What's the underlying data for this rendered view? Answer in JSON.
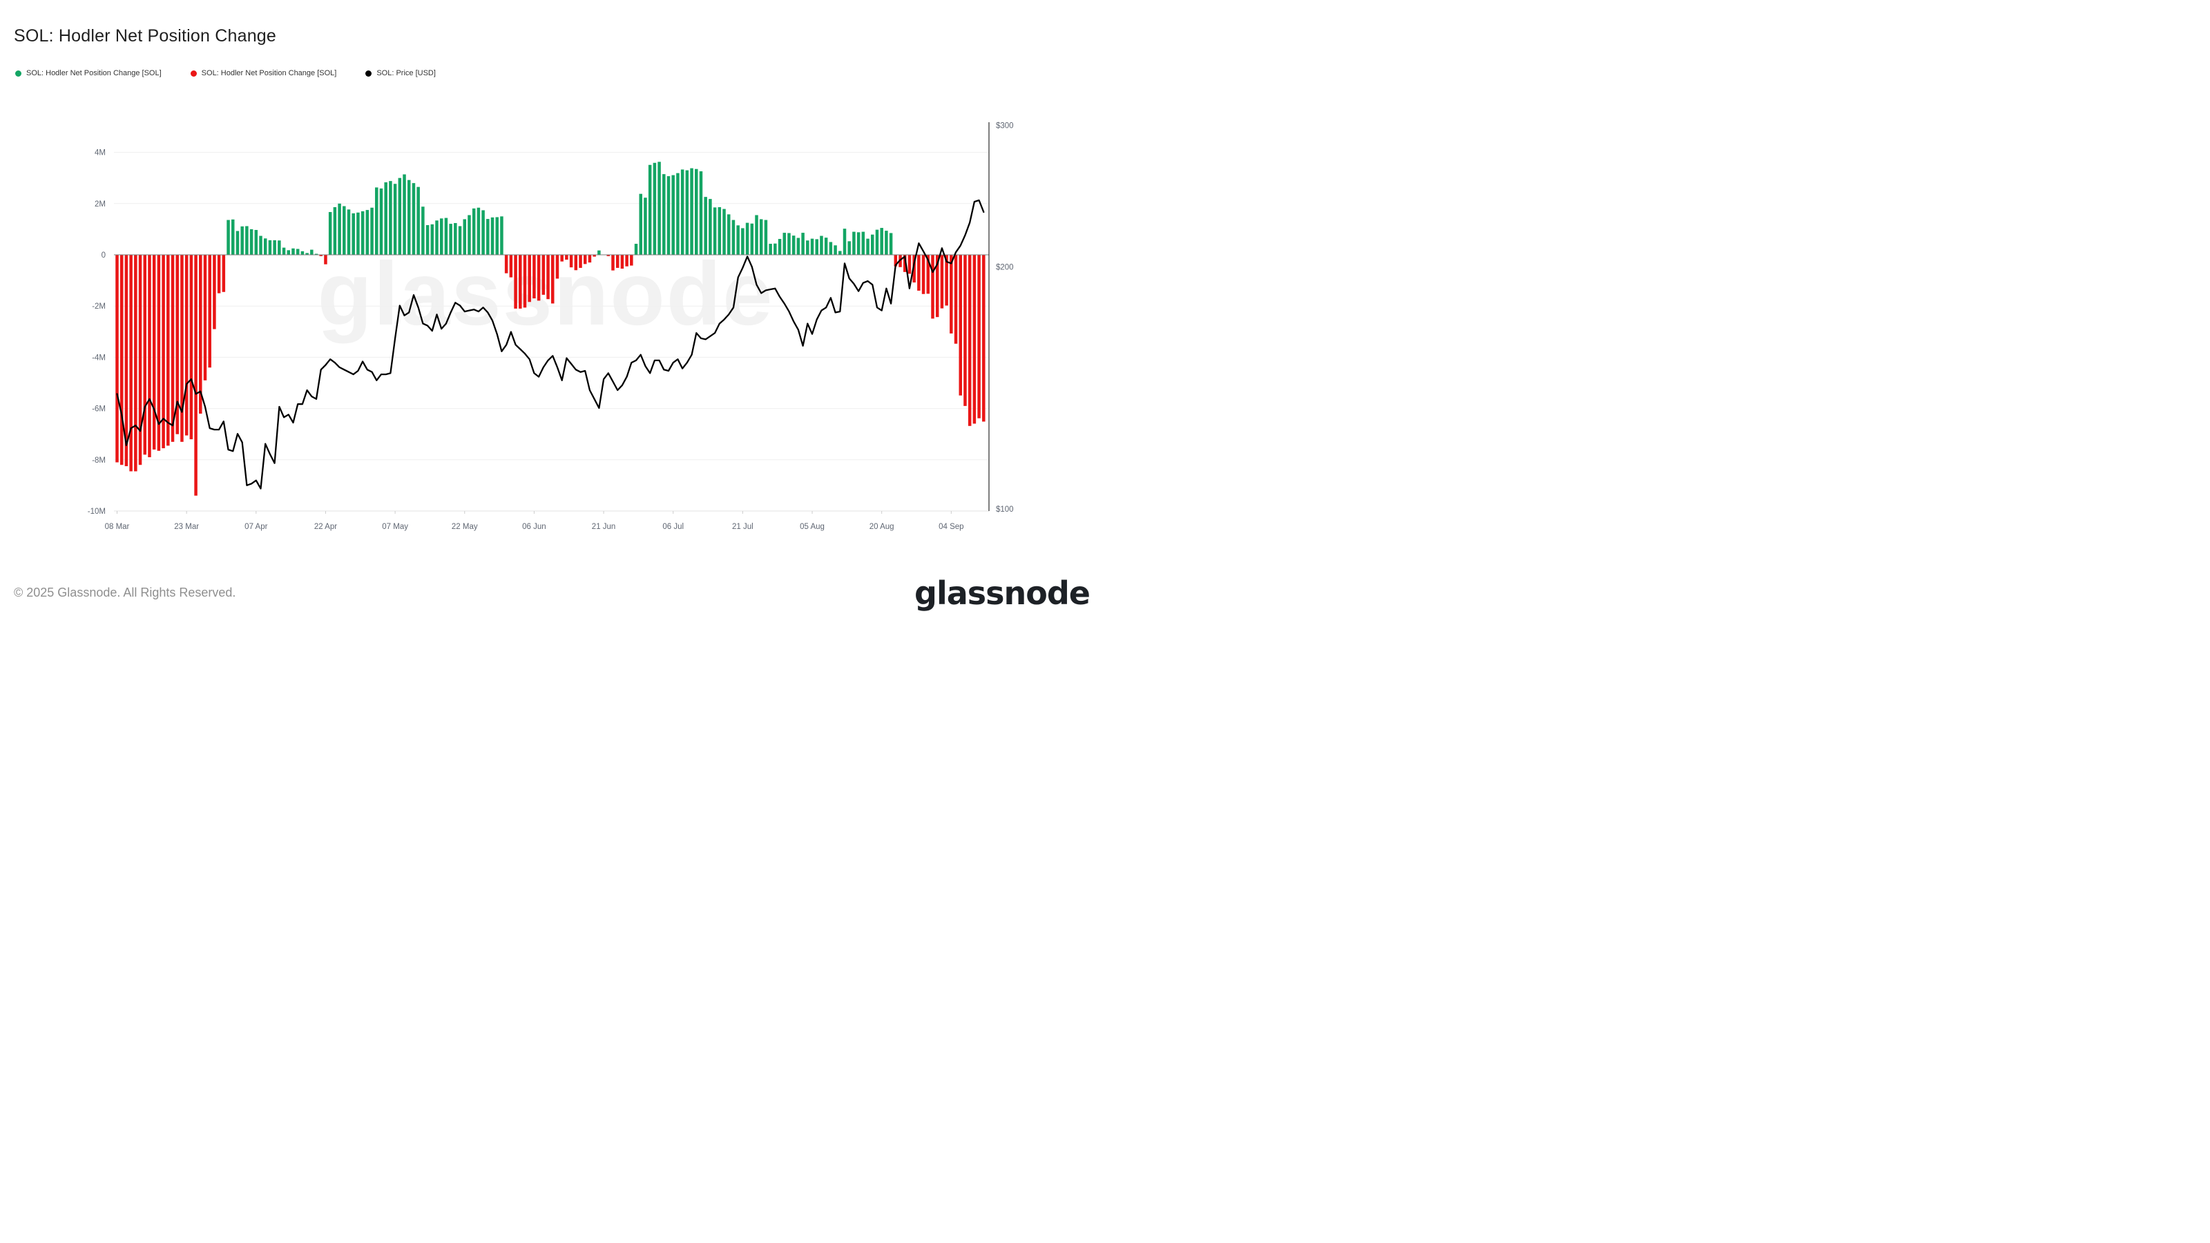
{
  "title": "SOL: Hodler Net Position Change",
  "legend": [
    {
      "label": "SOL: Hodler Net Position Change [SOL]",
      "color": "#14a564"
    },
    {
      "label": "SOL: Hodler Net Position Change [SOL]",
      "color": "#ea1616"
    },
    {
      "label": "SOL: Price [USD]",
      "color": "#000000"
    }
  ],
  "watermark": "glassnode",
  "footer": {
    "copyright": "© 2025 Glassnode. All Rights Reserved.",
    "brand": "glassnode"
  },
  "chart_data": {
    "type": "bar",
    "title": "SOL: Hodler Net Position Change",
    "x_start_label": "08 Mar",
    "x_tick_labels": [
      "08 Mar",
      "23 Mar",
      "07 Apr",
      "22 Apr",
      "07 May",
      "22 May",
      "06 Jun",
      "21 Jun",
      "06 Jul",
      "21 Jul",
      "05 Aug",
      "20 Aug",
      "04 Sep"
    ],
    "x_tick_day_index": [
      0,
      15,
      30,
      45,
      60,
      75,
      90,
      105,
      120,
      135,
      150,
      165,
      180
    ],
    "left_axis": {
      "unit": "millions of SOL",
      "ticks": [
        {
          "label": "4M",
          "value": 4
        },
        {
          "label": "2M",
          "value": 2
        },
        {
          "label": "0",
          "value": 0
        },
        {
          "label": "-2M",
          "value": -2
        },
        {
          "label": "-4M",
          "value": -4
        },
        {
          "label": "-6M",
          "value": -6
        },
        {
          "label": "-8M",
          "value": -8
        },
        {
          "label": "-10M",
          "value": -10
        }
      ],
      "range": [
        -10,
        4.6
      ],
      "grid": true
    },
    "right_axis": {
      "unit": "USD",
      "scale": "log",
      "ticks": [
        {
          "label": "$300",
          "value": 300
        },
        {
          "label": "$200",
          "value": 200
        },
        {
          "label": "$100",
          "value": 100
        }
      ]
    },
    "series": [
      {
        "name": "SOL: Hodler Net Position Change [SOL]",
        "type": "bar",
        "unit": "M SOL",
        "positive_color": "#14a564",
        "negative_color": "#ea1616",
        "values": [
          -8.1,
          -8.2,
          -8.25,
          -8.45,
          -8.45,
          -8.2,
          -7.8,
          -7.9,
          -7.6,
          -7.65,
          -7.55,
          -7.45,
          -7.3,
          -7.0,
          -7.3,
          -7.05,
          -7.2,
          -9.4,
          -6.2,
          -4.9,
          -4.4,
          -2.9,
          -1.5,
          -1.45,
          1.36,
          1.38,
          0.93,
          1.11,
          1.12,
          1.0,
          0.97,
          0.74,
          0.64,
          0.57,
          0.57,
          0.56,
          0.28,
          0.18,
          0.25,
          0.23,
          0.14,
          0.07,
          0.2,
          0.04,
          -0.05,
          -0.37,
          1.67,
          1.86,
          2.0,
          1.9,
          1.77,
          1.62,
          1.65,
          1.7,
          1.75,
          1.84,
          2.63,
          2.59,
          2.83,
          2.88,
          2.77,
          3.0,
          3.14,
          2.92,
          2.8,
          2.65,
          1.88,
          1.16,
          1.19,
          1.34,
          1.42,
          1.44,
          1.21,
          1.24,
          1.12,
          1.39,
          1.55,
          1.81,
          1.84,
          1.74,
          1.4,
          1.46,
          1.47,
          1.5,
          -0.72,
          -0.88,
          -2.1,
          -2.1,
          -2.06,
          -1.84,
          -1.7,
          -1.79,
          -1.56,
          -1.73,
          -1.9,
          -0.93,
          -0.26,
          -0.19,
          -0.49,
          -0.6,
          -0.51,
          -0.36,
          -0.3,
          -0.07,
          0.17,
          0.0,
          -0.05,
          -0.61,
          -0.51,
          -0.54,
          -0.45,
          -0.42,
          0.43,
          2.38,
          2.23,
          3.51,
          3.59,
          3.63,
          3.15,
          3.07,
          3.11,
          3.19,
          3.33,
          3.3,
          3.38,
          3.35,
          3.26,
          2.26,
          2.18,
          1.85,
          1.86,
          1.79,
          1.58,
          1.36,
          1.15,
          1.04,
          1.25,
          1.22,
          1.55,
          1.39,
          1.36,
          0.43,
          0.44,
          0.62,
          0.86,
          0.85,
          0.75,
          0.66,
          0.86,
          0.56,
          0.63,
          0.61,
          0.74,
          0.67,
          0.5,
          0.37,
          0.15,
          1.02,
          0.53,
          0.9,
          0.88,
          0.9,
          0.63,
          0.79,
          0.98,
          1.05,
          0.94,
          0.85,
          -0.45,
          -0.48,
          -0.67,
          -0.74,
          -1.08,
          -1.4,
          -1.53,
          -1.52,
          -2.49,
          -2.43,
          -2.09,
          -1.98,
          -3.07,
          -3.47,
          -5.49,
          -5.9,
          -6.68,
          -6.59,
          -6.38,
          -6.51
        ]
      },
      {
        "name": "SOL: Price [USD]",
        "type": "line",
        "unit": "USD",
        "color": "#000000",
        "values": [
          139,
          131,
          120,
          126,
          127,
          125,
          134,
          137,
          133,
          127.5,
          129.5,
          128,
          127,
          136,
          132,
          143,
          145,
          139,
          140,
          134,
          126,
          125.5,
          125.5,
          128.5,
          118.5,
          118,
          124,
          121,
          107,
          107.5,
          108.5,
          106,
          120.5,
          117,
          114,
          134,
          130,
          131,
          128,
          135,
          135,
          140.5,
          138,
          137,
          149,
          151,
          153.5,
          152,
          150,
          149,
          148,
          147,
          148.5,
          152.5,
          149,
          148,
          144.5,
          147,
          147,
          147.5,
          163,
          179,
          174,
          175.5,
          184.5,
          178,
          170,
          169,
          166.5,
          174.5,
          167.5,
          170,
          175.5,
          180.5,
          179,
          176,
          176.5,
          177,
          176,
          178,
          175.5,
          171.5,
          165,
          157,
          160,
          166,
          160,
          158,
          156,
          153.5,
          147.5,
          146,
          150,
          153,
          155,
          150,
          144.5,
          154,
          151.5,
          149,
          148,
          148.5,
          140.5,
          137,
          133.5,
          145,
          147.5,
          144,
          140.5,
          142.5,
          146,
          152,
          153,
          155.5,
          150.5,
          147.5,
          153,
          153,
          149,
          148.5,
          152,
          153.5,
          149.5,
          152,
          155.5,
          165.5,
          163,
          162.5,
          164,
          165.5,
          170,
          172,
          174.5,
          178,
          194,
          199.5,
          206,
          200,
          190,
          185.5,
          187,
          187.5,
          188,
          183.5,
          180,
          176,
          171,
          167,
          159.5,
          170,
          165,
          172,
          176.5,
          178,
          183,
          175.5,
          176,
          202,
          193.5,
          190.5,
          186.5,
          191,
          192,
          190,
          178,
          176.5,
          188,
          180,
          201,
          204,
          206,
          188,
          202,
          214,
          209,
          204,
          197,
          201.5,
          211,
          203,
          202,
          208.5,
          212.5,
          219,
          227,
          241,
          242,
          234
        ]
      }
    ]
  }
}
